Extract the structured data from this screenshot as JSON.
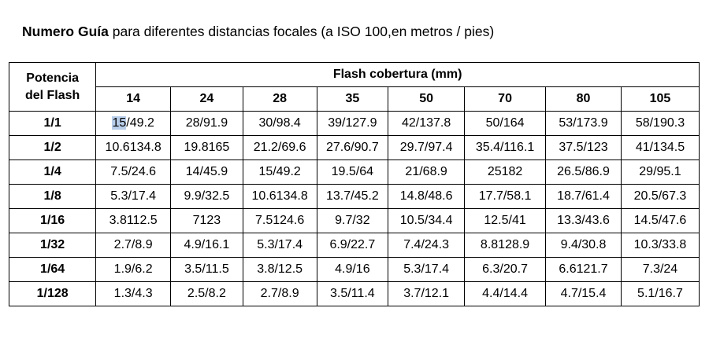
{
  "title": {
    "bold": "Numero Guía",
    "rest": " para diferentes distancias focales (a ISO 100,en metros / pies)"
  },
  "table": {
    "power_header": [
      "Potencia",
      "del Flash"
    ],
    "coverage_header": "Flash cobertura (mm)",
    "focal_lengths": [
      "14",
      "24",
      "28",
      "35",
      "50",
      "70",
      "80",
      "105"
    ],
    "rows": [
      {
        "power": "1/1",
        "cells": [
          "15/49.2",
          "28/91.9",
          "30/98.4",
          "39/127.9",
          "42/137.8",
          "50/164",
          "53/173.9",
          "58/190.3"
        ]
      },
      {
        "power": "1/2",
        "cells": [
          "10.6134.8",
          "19.8165",
          "21.2/69.6",
          "27.6/90.7",
          "29.7/97.4",
          "35.4/116.1",
          "37.5/123",
          "41/134.5"
        ]
      },
      {
        "power": "1/4",
        "cells": [
          "7.5/24.6",
          "14/45.9",
          "15/49.2",
          "19.5/64",
          "21/68.9",
          "25182",
          "26.5/86.9",
          "29/95.1"
        ]
      },
      {
        "power": "1/8",
        "cells": [
          "5.3/17.4",
          "9.9/32.5",
          "10.6134.8",
          "13.7/45.2",
          "14.8/48.6",
          "17.7/58.1",
          "18.7/61.4",
          "20.5/67.3"
        ]
      },
      {
        "power": "1/16",
        "cells": [
          "3.8112.5",
          "7123",
          "7.5124.6",
          "9.7/32",
          "10.5/34.4",
          "12.5/41",
          "13.3/43.6",
          "14.5/47.6"
        ]
      },
      {
        "power": "1/32",
        "cells": [
          "2.7/8.9",
          "4.9/16.1",
          "5.3/17.4",
          "6.9/22.7",
          "7.4/24.3",
          "8.8128.9",
          "9.4/30.8",
          "10.3/33.8"
        ]
      },
      {
        "power": "1/64",
        "cells": [
          "1.9/6.2",
          "3.5/11.5",
          "3.8/12.5",
          "4.9/16",
          "5.3/17.4",
          "6.3/20.7",
          "6.6121.7",
          "7.3/24"
        ]
      },
      {
        "power": "1/128",
        "cells": [
          "1.3/4.3",
          "2.5/8.2",
          "2.7/8.9",
          "3.5/11.4",
          "3.7/12.1",
          "4.4/14.4",
          "4.7/15.4",
          "5.1/16.7"
        ]
      }
    ],
    "selection": {
      "text": "15",
      "row": 0,
      "col": 0
    },
    "colors": {
      "selection": "#b7cde9",
      "border": "#000000"
    }
  }
}
